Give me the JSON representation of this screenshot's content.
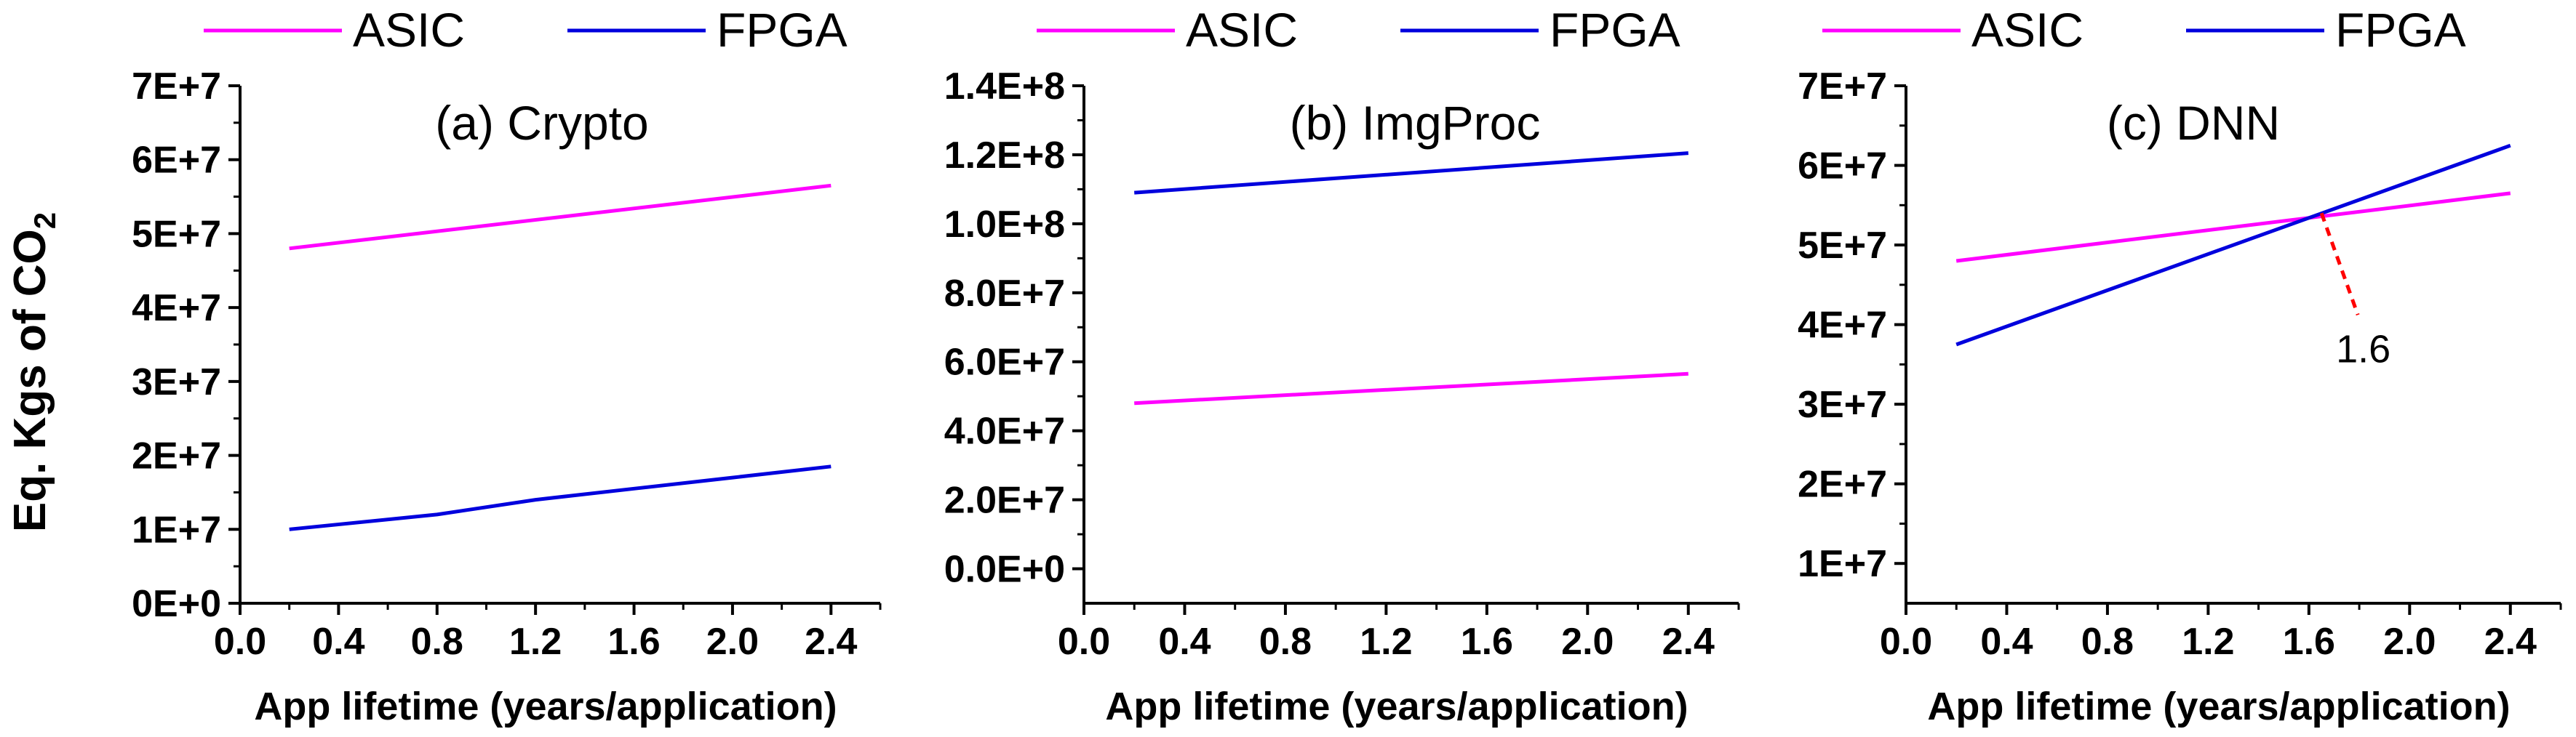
{
  "ylabel": {
    "main": "Eq. Kgs of CO",
    "sub": "2"
  },
  "chart_data": [
    {
      "type": "line",
      "title": "(a) Crypto",
      "xlabel": "App lifetime (years/application)",
      "ylabel": "Eq. Kgs of CO2",
      "xlim": [
        0.0,
        2.6
      ],
      "xticks": [
        "0.0",
        "0.4",
        "0.8",
        "1.2",
        "1.6",
        "2.0",
        "2.4"
      ],
      "ylim": [
        0,
        70000000
      ],
      "yticks": [
        {
          "value": 0,
          "label": "0E+0"
        },
        {
          "value": 10000000,
          "label": "1E+7"
        },
        {
          "value": 20000000,
          "label": "2E+7"
        },
        {
          "value": 30000000,
          "label": "3E+7"
        },
        {
          "value": 40000000,
          "label": "4E+7"
        },
        {
          "value": 50000000,
          "label": "5E+7"
        },
        {
          "value": 60000000,
          "label": "6E+7"
        },
        {
          "value": 70000000,
          "label": "7E+7"
        }
      ],
      "legend": [
        "ASIC",
        "FPGA"
      ],
      "series": [
        {
          "name": "ASIC",
          "color": "#ff00ff",
          "x": [
            0.2,
            2.4
          ],
          "values": [
            48000000,
            56500000
          ]
        },
        {
          "name": "FPGA",
          "color": "#0000dd",
          "x": [
            0.2,
            0.8,
            1.2,
            1.6,
            2.0,
            2.4
          ],
          "values": [
            10000000,
            12000000,
            14000000,
            15500000,
            17000000,
            18500000
          ]
        }
      ]
    },
    {
      "type": "line",
      "title": "(b) ImgProc",
      "xlabel": "App lifetime (years/application)",
      "ylabel": "",
      "xlim": [
        0.0,
        2.6
      ],
      "xticks": [
        "0.0",
        "0.4",
        "0.8",
        "1.2",
        "1.6",
        "2.0",
        "2.4"
      ],
      "ylim": [
        -10000000,
        140000000
      ],
      "yticks": [
        {
          "value": 0,
          "label": "0.0E+0"
        },
        {
          "value": 20000000,
          "label": "2.0E+7"
        },
        {
          "value": 40000000,
          "label": "4.0E+7"
        },
        {
          "value": 60000000,
          "label": "6.0E+7"
        },
        {
          "value": 80000000,
          "label": "8.0E+7"
        },
        {
          "value": 100000000,
          "label": "1.0E+8"
        },
        {
          "value": 120000000,
          "label": "1.2E+8"
        },
        {
          "value": 140000000,
          "label": "1.4E+8"
        }
      ],
      "legend": [
        "ASIC",
        "FPGA"
      ],
      "series": [
        {
          "name": "ASIC",
          "color": "#ff00ff",
          "x": [
            0.2,
            2.4
          ],
          "values": [
            48000000,
            56500000
          ]
        },
        {
          "name": "FPGA",
          "color": "#0000dd",
          "x": [
            0.2,
            2.4
          ],
          "values": [
            109000000,
            120500000
          ]
        }
      ]
    },
    {
      "type": "line",
      "title": "(c) DNN",
      "xlabel": "App lifetime (years/application)",
      "ylabel": "",
      "xlim": [
        0.0,
        2.6
      ],
      "xticks": [
        "0.0",
        "0.4",
        "0.8",
        "1.2",
        "1.6",
        "2.0",
        "2.4"
      ],
      "ylim": [
        5000000,
        70000000
      ],
      "yticks": [
        {
          "value": 10000000,
          "label": "1E+7"
        },
        {
          "value": 20000000,
          "label": "2E+7"
        },
        {
          "value": 30000000,
          "label": "3E+7"
        },
        {
          "value": 40000000,
          "label": "4E+7"
        },
        {
          "value": 50000000,
          "label": "5E+7"
        },
        {
          "value": 60000000,
          "label": "6E+7"
        },
        {
          "value": 70000000,
          "label": "7E+7"
        }
      ],
      "legend": [
        "ASIC",
        "FPGA"
      ],
      "series": [
        {
          "name": "ASIC",
          "color": "#ff00ff",
          "x": [
            0.2,
            2.4
          ],
          "values": [
            48000000,
            56500000
          ]
        },
        {
          "name": "FPGA",
          "color": "#0000dd",
          "x": [
            0.2,
            2.4
          ],
          "values": [
            37500000,
            62500000
          ]
        }
      ],
      "annotation": {
        "text": "1.6",
        "x": 1.65,
        "y": 54000000,
        "color": "#ff0000"
      }
    }
  ]
}
